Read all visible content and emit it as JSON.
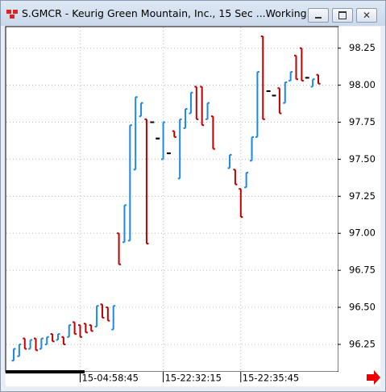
{
  "window_title": "S.GMCR - Keurig Green Mountain, Inc., 15 Sec ...Working...",
  "chart_data": {
    "type": "ohlc",
    "categories": [
      null,
      null,
      null,
      null,
      null,
      null,
      null,
      null,
      null,
      null,
      null,
      null,
      "15-04:58:45",
      null,
      null,
      null,
      null,
      null,
      null,
      null,
      null,
      null,
      null,
      null,
      null,
      null,
      null,
      "15-22:32:15",
      null,
      null,
      null,
      null,
      null,
      null,
      null,
      null,
      null,
      null,
      null,
      null,
      null,
      "15-22:35:45",
      null,
      null,
      null,
      null,
      null,
      null,
      null,
      null,
      null,
      null,
      null,
      null,
      null,
      null
    ],
    "high": [
      96.22,
      96.25,
      96.29,
      96.28,
      96.29,
      96.29,
      96.3,
      96.32,
      96.32,
      96.3,
      96.38,
      96.4,
      96.38,
      96.39,
      96.38,
      96.51,
      96.52,
      96.5,
      96.51,
      97.0,
      97.19,
      97.73,
      97.92,
      97.88,
      97.77,
      97.75,
      97.64,
      97.75,
      97.54,
      97.69,
      97.77,
      97.84,
      97.95,
      97.99,
      97.99,
      97.88,
      97.79,
      null,
      null,
      97.53,
      97.43,
      97.3,
      97.41,
      97.65,
      98.09,
      98.33,
      97.96,
      97.93,
      97.98,
      98.02,
      98.09,
      98.2,
      98.25,
      98.05,
      98.04,
      98.07
    ],
    "low": [
      96.14,
      96.17,
      96.22,
      96.22,
      96.21,
      96.22,
      96.25,
      96.27,
      96.28,
      96.25,
      96.3,
      96.32,
      96.3,
      96.33,
      96.34,
      96.37,
      96.43,
      96.41,
      96.35,
      96.79,
      96.94,
      96.95,
      97.43,
      97.79,
      96.93,
      97.75,
      97.64,
      97.5,
      97.54,
      97.65,
      97.37,
      97.71,
      97.81,
      97.77,
      97.73,
      97.77,
      97.57,
      null,
      null,
      97.44,
      97.33,
      97.11,
      97.31,
      97.49,
      97.65,
      97.77,
      97.96,
      97.93,
      97.81,
      97.88,
      98.03,
      98.04,
      98.03,
      98.05,
      97.99,
      98.01
    ],
    "open": [
      96.14,
      96.17,
      96.29,
      96.22,
      96.29,
      96.22,
      96.25,
      96.32,
      96.28,
      96.3,
      96.3,
      96.4,
      96.38,
      96.39,
      96.38,
      96.37,
      96.52,
      96.5,
      96.35,
      97.0,
      96.94,
      96.95,
      97.43,
      97.79,
      97.77,
      97.75,
      97.64,
      97.5,
      97.54,
      97.69,
      97.37,
      97.71,
      97.81,
      97.99,
      97.99,
      97.77,
      97.79,
      null,
      null,
      97.44,
      97.43,
      97.3,
      97.31,
      97.49,
      97.65,
      98.33,
      97.96,
      97.93,
      97.98,
      97.88,
      98.03,
      98.2,
      98.25,
      98.05,
      97.99,
      98.07
    ],
    "close": [
      96.22,
      96.25,
      96.22,
      96.28,
      96.21,
      96.29,
      96.3,
      96.27,
      96.32,
      96.25,
      96.38,
      96.32,
      96.3,
      96.33,
      96.34,
      96.51,
      96.43,
      96.41,
      96.51,
      96.79,
      97.19,
      97.73,
      97.92,
      97.88,
      96.93,
      97.75,
      97.64,
      97.75,
      97.54,
      97.65,
      97.77,
      97.84,
      97.95,
      97.77,
      97.73,
      97.88,
      97.57,
      null,
      null,
      97.53,
      97.33,
      97.11,
      97.41,
      97.65,
      98.09,
      97.77,
      97.96,
      97.93,
      97.81,
      98.02,
      98.09,
      98.04,
      98.03,
      98.05,
      98.04,
      98.01
    ],
    "up_color": "#1e88e5",
    "down_color": "#c00000",
    "flat_color": "#000000",
    "ylim": [
      96.07,
      98.39
    ],
    "yticks": [
      96.25,
      {
        "value": 96.5,
        "label": "96.50"
      },
      96.75,
      {
        "value": 97,
        "label": "97.00"
      },
      97.25,
      {
        "value": 97.5,
        "label": "97.50"
      },
      97.75,
      {
        "value": 98,
        "label": "98.00"
      },
      98.25
    ],
    "grid": true
  }
}
